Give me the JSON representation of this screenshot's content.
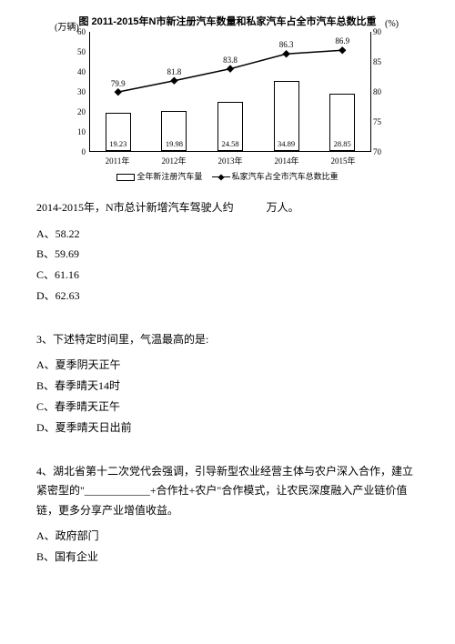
{
  "chart": {
    "title": "图 2011-2015年N市新注册汽车数量和私家汽车占全市汽车总数比重",
    "y_left_label": "(万辆)",
    "y_right_label": "(%)",
    "y_left_ticks": [
      0,
      10,
      20,
      30,
      40,
      50,
      60
    ],
    "y_left_max": 60,
    "y_right_ticks": [
      70,
      75,
      80,
      85,
      90
    ],
    "y_right_min": 70,
    "y_right_max": 90,
    "categories": [
      "2011年",
      "2012年",
      "2013年",
      "2014年",
      "2015年"
    ],
    "bars": [
      19.23,
      19.98,
      24.58,
      34.89,
      28.85
    ],
    "line": [
      79.9,
      81.8,
      83.8,
      86.3,
      86.9
    ],
    "legend_bar": "全年新注册汽车量",
    "legend_line": "私家汽车占全市汽车总数比重",
    "colors": {
      "background": "#ffffff",
      "border": "#000000",
      "bar_fill": "#ffffff",
      "line": "#000000"
    }
  },
  "q2": {
    "stem": "2014-2015年，N市总计新增汽车驾驶人约　　　万人。",
    "options": [
      "A、58.22",
      "B、59.69",
      "C、61.16",
      "D、62.63"
    ]
  },
  "q3": {
    "stem": "3、下述特定时间里，气温最高的是:",
    "options": [
      "A、夏季阴天正午",
      "B、春季晴天14时",
      "C、春季晴天正午",
      "D、夏季晴天日出前"
    ]
  },
  "q4": {
    "stem": "4、湖北省第十二次党代会强调，引导新型农业经营主体与农户深入合作，建立紧密型的\"____________+合作社+农户\"合作模式，让农民深度融入产业链价值链，更多分享产业增值收益。",
    "options": [
      "A、政府部门",
      "B、国有企业"
    ]
  }
}
